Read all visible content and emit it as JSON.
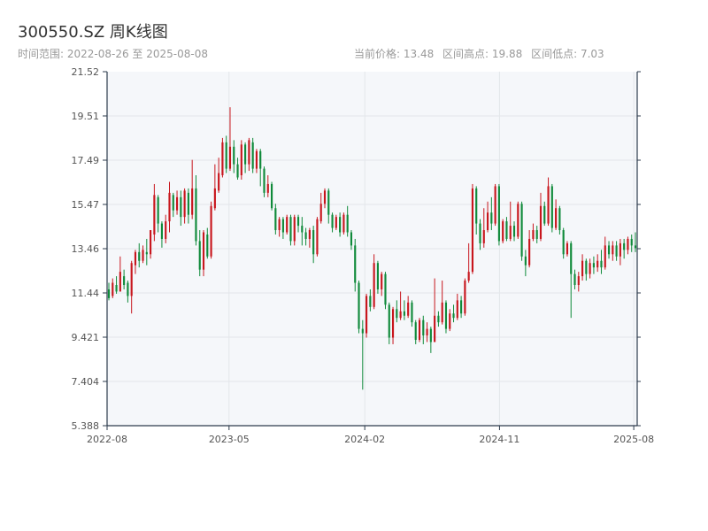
{
  "header": {
    "title": "300550.SZ 周K线图",
    "range_label": "时间范围: 2022-08-26 至 2025-08-08",
    "current_price_label": "当前价格: 13.48",
    "high_label": "区间高点: 19.88",
    "low_label": "区间低点: 7.03"
  },
  "colors": {
    "up": "#c8161d",
    "down": "#0f8a3a",
    "plot_bg": "#f5f7fa",
    "grid": "#e3e6ea",
    "axis": "#2d3b4c"
  },
  "chart_data": {
    "type": "candlestick",
    "title": "300550.SZ 周K线图",
    "x_start": "2022-08-26",
    "x_end": "2025-08-08",
    "ylim": [
      5.388,
      21.52
    ],
    "y_ticks": [
      "21.52",
      "19.51",
      "17.49",
      "15.47",
      "13.46",
      "11.44",
      "9.421",
      "7.404",
      "5.388"
    ],
    "x_ticks": [
      "2022-08",
      "2023-05",
      "2024-02",
      "2024-11",
      "2025-08"
    ],
    "grid": true,
    "candles": [
      [
        11.6,
        11.2,
        11.9,
        11.1
      ],
      [
        11.3,
        11.9,
        12.1,
        11.2
      ],
      [
        11.8,
        11.5,
        12.2,
        11.4
      ],
      [
        11.5,
        12.4,
        13.1,
        11.5
      ],
      [
        12.2,
        11.8,
        12.5,
        11.6
      ],
      [
        11.9,
        11.3,
        12.0,
        11.0
      ],
      [
        11.3,
        12.8,
        12.9,
        10.5
      ],
      [
        12.7,
        13.3,
        13.4,
        12.3
      ],
      [
        13.3,
        12.9,
        13.7,
        12.6
      ],
      [
        12.9,
        13.4,
        13.6,
        12.8
      ],
      [
        13.3,
        13.2,
        13.9,
        12.7
      ],
      [
        13.2,
        14.3,
        14.3,
        13.0
      ],
      [
        14.1,
        15.9,
        16.4,
        13.8
      ],
      [
        15.8,
        14.6,
        15.9,
        14.2
      ],
      [
        14.6,
        13.9,
        14.7,
        13.5
      ],
      [
        13.9,
        14.7,
        15.0,
        13.7
      ],
      [
        14.7,
        16.0,
        16.5,
        14.2
      ],
      [
        15.9,
        15.2,
        16.0,
        14.9
      ],
      [
        15.2,
        15.8,
        16.1,
        15.0
      ],
      [
        15.8,
        14.9,
        16.1,
        14.5
      ],
      [
        14.9,
        16.1,
        16.2,
        14.6
      ],
      [
        16.0,
        15.0,
        16.2,
        14.6
      ],
      [
        15.0,
        16.2,
        17.5,
        14.8
      ],
      [
        16.2,
        13.8,
        16.8,
        13.6
      ],
      [
        13.8,
        12.5,
        14.3,
        12.2
      ],
      [
        12.5,
        14.2,
        14.3,
        12.2
      ],
      [
        14.1,
        13.1,
        14.4,
        13.0
      ],
      [
        13.1,
        15.4,
        15.6,
        13.0
      ],
      [
        15.3,
        16.2,
        17.3,
        15.2
      ],
      [
        16.1,
        16.9,
        17.6,
        16.0
      ],
      [
        16.8,
        18.3,
        18.5,
        16.7
      ],
      [
        18.3,
        17.1,
        18.6,
        16.9
      ],
      [
        17.1,
        18.1,
        19.9,
        17.0
      ],
      [
        18.1,
        17.3,
        18.4,
        16.9
      ],
      [
        17.3,
        16.7,
        17.6,
        16.6
      ],
      [
        16.8,
        18.2,
        18.4,
        16.6
      ],
      [
        18.2,
        17.3,
        18.3,
        16.9
      ],
      [
        17.3,
        18.4,
        18.5,
        17.0
      ],
      [
        18.3,
        17.1,
        18.5,
        16.9
      ],
      [
        17.1,
        17.9,
        18.0,
        16.9
      ],
      [
        17.9,
        17.1,
        18.0,
        16.3
      ],
      [
        17.1,
        16.0,
        17.2,
        15.8
      ],
      [
        16.0,
        16.4,
        16.8,
        15.8
      ],
      [
        16.4,
        15.3,
        16.5,
        15.2
      ],
      [
        15.3,
        14.3,
        15.5,
        14.1
      ],
      [
        14.3,
        14.8,
        14.9,
        14.0
      ],
      [
        14.8,
        14.2,
        14.9,
        13.9
      ],
      [
        14.2,
        14.9,
        15.0,
        14.1
      ],
      [
        14.9,
        13.8,
        15.0,
        13.6
      ],
      [
        13.8,
        14.9,
        15.0,
        13.6
      ],
      [
        14.9,
        14.5,
        15.0,
        14.2
      ],
      [
        14.5,
        14.2,
        14.9,
        13.6
      ],
      [
        14.2,
        13.9,
        14.4,
        13.6
      ],
      [
        13.9,
        14.3,
        14.4,
        13.5
      ],
      [
        14.3,
        13.2,
        14.5,
        12.8
      ],
      [
        13.2,
        14.8,
        14.9,
        13.1
      ],
      [
        14.7,
        15.5,
        16.0,
        14.6
      ],
      [
        15.5,
        16.1,
        16.2,
        15.3
      ],
      [
        16.1,
        15.0,
        16.2,
        14.6
      ],
      [
        15.0,
        14.4,
        15.1,
        14.2
      ],
      [
        14.4,
        14.9,
        15.0,
        14.3
      ],
      [
        14.9,
        14.2,
        15.1,
        14.0
      ],
      [
        14.2,
        15.0,
        15.1,
        14.1
      ],
      [
        15.0,
        14.2,
        15.4,
        14.0
      ],
      [
        14.2,
        13.6,
        14.3,
        13.4
      ],
      [
        13.6,
        11.9,
        13.9,
        11.5
      ],
      [
        11.9,
        9.8,
        12.0,
        9.6
      ],
      [
        9.8,
        9.6,
        10.2,
        7.03
      ],
      [
        9.6,
        11.3,
        11.4,
        9.4
      ],
      [
        11.3,
        10.8,
        11.6,
        10.6
      ],
      [
        10.8,
        12.8,
        13.2,
        10.7
      ],
      [
        12.8,
        11.6,
        12.9,
        11.4
      ],
      [
        11.6,
        12.3,
        12.4,
        11.3
      ],
      [
        12.3,
        10.9,
        12.4,
        10.7
      ],
      [
        10.9,
        9.4,
        11.0,
        9.1
      ],
      [
        9.4,
        10.7,
        10.8,
        9.1
      ],
      [
        10.7,
        10.3,
        11.1,
        10.1
      ],
      [
        10.3,
        10.6,
        11.5,
        10.2
      ],
      [
        10.6,
        10.4,
        11.1,
        10.2
      ],
      [
        10.4,
        11.0,
        11.3,
        10.3
      ],
      [
        11.0,
        10.1,
        11.1,
        9.9
      ],
      [
        10.1,
        9.3,
        10.2,
        9.1
      ],
      [
        9.3,
        10.2,
        10.3,
        9.2
      ],
      [
        10.2,
        9.5,
        10.4,
        9.1
      ],
      [
        9.5,
        9.8,
        10.1,
        9.2
      ],
      [
        9.8,
        9.2,
        9.9,
        8.7
      ],
      [
        9.2,
        10.4,
        12.1,
        9.2
      ],
      [
        10.4,
        10.1,
        10.6,
        9.9
      ],
      [
        10.1,
        11.0,
        12.0,
        10.0
      ],
      [
        11.0,
        9.8,
        11.1,
        9.6
      ],
      [
        9.8,
        10.5,
        10.7,
        9.7
      ],
      [
        10.5,
        10.3,
        10.9,
        10.1
      ],
      [
        10.3,
        11.1,
        11.4,
        10.2
      ],
      [
        11.1,
        10.5,
        11.3,
        10.3
      ],
      [
        10.5,
        12.0,
        12.1,
        10.4
      ],
      [
        12.0,
        12.4,
        13.7,
        11.9
      ],
      [
        12.4,
        16.2,
        16.4,
        12.3
      ],
      [
        16.2,
        14.6,
        16.3,
        14.1
      ],
      [
        14.6,
        13.7,
        14.8,
        13.4
      ],
      [
        13.7,
        14.3,
        15.3,
        13.5
      ],
      [
        14.3,
        15.1,
        15.6,
        14.2
      ],
      [
        15.1,
        14.6,
        15.8,
        14.3
      ],
      [
        14.6,
        16.3,
        16.4,
        14.5
      ],
      [
        16.3,
        13.8,
        16.4,
        13.6
      ],
      [
        13.8,
        14.7,
        14.8,
        13.7
      ],
      [
        14.7,
        13.9,
        14.9,
        13.8
      ],
      [
        13.9,
        14.5,
        15.6,
        13.8
      ],
      [
        14.5,
        14.0,
        14.7,
        13.8
      ],
      [
        14.0,
        15.5,
        15.6,
        13.9
      ],
      [
        15.5,
        13.1,
        15.6,
        12.9
      ],
      [
        13.1,
        12.7,
        13.4,
        12.2
      ],
      [
        12.7,
        13.9,
        14.3,
        12.6
      ],
      [
        13.9,
        14.3,
        14.6,
        13.8
      ],
      [
        14.3,
        13.9,
        14.5,
        13.7
      ],
      [
        13.9,
        15.4,
        16.0,
        13.8
      ],
      [
        15.4,
        14.6,
        15.6,
        14.5
      ],
      [
        14.6,
        16.3,
        16.7,
        14.5
      ],
      [
        16.3,
        14.4,
        16.4,
        14.2
      ],
      [
        14.4,
        15.3,
        15.7,
        14.3
      ],
      [
        15.3,
        14.3,
        15.4,
        14.1
      ],
      [
        14.3,
        13.2,
        14.4,
        13.0
      ],
      [
        13.2,
        13.7,
        13.8,
        13.1
      ],
      [
        13.7,
        12.3,
        13.8,
        10.3
      ],
      [
        12.3,
        11.8,
        12.5,
        11.6
      ],
      [
        11.8,
        12.2,
        12.4,
        11.5
      ],
      [
        12.2,
        12.9,
        13.2,
        12.0
      ],
      [
        12.9,
        12.3,
        13.0,
        12.0
      ],
      [
        12.3,
        12.8,
        13.0,
        12.1
      ],
      [
        12.8,
        12.6,
        13.1,
        12.3
      ],
      [
        12.6,
        12.9,
        13.2,
        12.4
      ],
      [
        12.9,
        12.6,
        13.4,
        12.3
      ],
      [
        12.6,
        13.6,
        14.0,
        12.5
      ],
      [
        13.6,
        13.2,
        13.8,
        13.0
      ],
      [
        13.2,
        13.6,
        13.8,
        12.9
      ],
      [
        13.6,
        13.1,
        13.8,
        12.9
      ],
      [
        13.1,
        13.7,
        13.9,
        12.7
      ],
      [
        13.7,
        13.4,
        13.9,
        13.0
      ],
      [
        13.4,
        13.9,
        14.0,
        13.2
      ],
      [
        13.9,
        13.6,
        14.1,
        13.3
      ],
      [
        13.6,
        13.48,
        14.2,
        13.3
      ]
    ]
  }
}
